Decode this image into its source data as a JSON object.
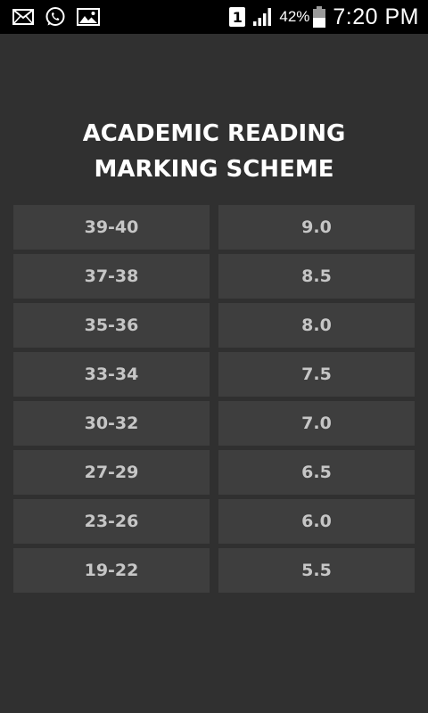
{
  "status_bar": {
    "icons_left": [
      "mail-icon",
      "whatsapp-icon",
      "image-icon"
    ],
    "sim_label": "1",
    "battery_percent": "42%",
    "time": "7:20 PM"
  },
  "title": {
    "line1": "ACADEMIC READING",
    "line2": "MARKING SCHEME"
  },
  "scheme": [
    {
      "score": "39-40",
      "band": "9.0"
    },
    {
      "score": "37-38",
      "band": "8.5"
    },
    {
      "score": "35-36",
      "band": "8.0"
    },
    {
      "score": "33-34",
      "band": "7.5"
    },
    {
      "score": "30-32",
      "band": "7.0"
    },
    {
      "score": "27-29",
      "band": "6.5"
    },
    {
      "score": "23-26",
      "band": "6.0"
    },
    {
      "score": "19-22",
      "band": "5.5"
    }
  ],
  "colors": {
    "background": "#303030",
    "cell": "#3e3e3e",
    "cell_text": "#c6c6c6",
    "title": "#ffffff",
    "status_bar": "#000000"
  }
}
